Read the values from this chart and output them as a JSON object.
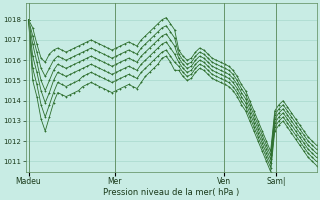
{
  "title": "",
  "xlabel": "Pression niveau de la mer( hPa )",
  "background_color": "#c8ece4",
  "grid_color": "#a8d8cc",
  "line_color": "#2d6e2d",
  "ylim": [
    1010.5,
    1018.8
  ],
  "yticks": [
    1011,
    1012,
    1013,
    1014,
    1015,
    1016,
    1017,
    1018
  ],
  "day_labels": [
    "Madeu",
    "Mer",
    "Ven",
    "Sam|"
  ],
  "day_positions": [
    0.0,
    0.3,
    0.68,
    0.86
  ],
  "series": [
    [
      1018.0,
      1017.6,
      1016.8,
      1016.1,
      1015.9,
      1016.3,
      1016.5,
      1016.6,
      1016.5,
      1016.4,
      1016.5,
      1016.6,
      1016.7,
      1016.8,
      1016.9,
      1017.0,
      1016.9,
      1016.8,
      1016.7,
      1016.6,
      1016.5,
      1016.6,
      1016.7,
      1016.8,
      1016.9,
      1016.8,
      1016.7,
      1017.0,
      1017.2,
      1017.4,
      1017.6,
      1017.8,
      1018.0,
      1018.1,
      1017.8,
      1017.5,
      1016.5,
      1016.2,
      1016.0,
      1016.1,
      1016.4,
      1016.6,
      1016.5,
      1016.3,
      1016.1,
      1016.0,
      1015.9,
      1015.8,
      1015.7,
      1015.5,
      1015.2,
      1014.8,
      1014.5,
      1014.0,
      1013.5,
      1013.0,
      1012.5,
      1012.0,
      1011.5,
      1013.5,
      1013.8,
      1014.0,
      1013.7,
      1013.4,
      1013.1,
      1012.8,
      1012.5,
      1012.2,
      1012.0,
      1011.8
    ],
    [
      1018.0,
      1017.2,
      1016.4,
      1015.6,
      1015.2,
      1015.6,
      1016.0,
      1016.2,
      1016.1,
      1016.0,
      1016.1,
      1016.2,
      1016.3,
      1016.4,
      1016.5,
      1016.6,
      1016.5,
      1016.4,
      1016.3,
      1016.2,
      1016.1,
      1016.2,
      1016.3,
      1016.4,
      1016.5,
      1016.4,
      1016.3,
      1016.6,
      1016.8,
      1017.0,
      1017.2,
      1017.4,
      1017.6,
      1017.7,
      1017.4,
      1017.1,
      1016.3,
      1016.0,
      1015.8,
      1015.9,
      1016.2,
      1016.4,
      1016.3,
      1016.1,
      1015.9,
      1015.8,
      1015.7,
      1015.6,
      1015.5,
      1015.3,
      1015.0,
      1014.6,
      1014.3,
      1013.8,
      1013.3,
      1012.8,
      1012.3,
      1011.8,
      1011.3,
      1013.3,
      1013.6,
      1013.8,
      1013.5,
      1013.2,
      1012.9,
      1012.6,
      1012.3,
      1012.0,
      1011.8,
      1011.6
    ],
    [
      1018.0,
      1016.8,
      1015.9,
      1015.0,
      1014.5,
      1015.0,
      1015.5,
      1015.8,
      1015.7,
      1015.6,
      1015.7,
      1015.8,
      1015.9,
      1016.0,
      1016.1,
      1016.2,
      1016.1,
      1016.0,
      1015.9,
      1015.8,
      1015.7,
      1015.8,
      1015.9,
      1016.0,
      1016.1,
      1016.0,
      1015.9,
      1016.2,
      1016.4,
      1016.6,
      1016.8,
      1017.0,
      1017.2,
      1017.3,
      1017.0,
      1016.7,
      1016.1,
      1015.8,
      1015.6,
      1015.7,
      1016.0,
      1016.2,
      1016.1,
      1015.9,
      1015.7,
      1015.6,
      1015.5,
      1015.4,
      1015.3,
      1015.1,
      1014.8,
      1014.4,
      1014.1,
      1013.6,
      1013.1,
      1012.6,
      1012.1,
      1011.6,
      1011.1,
      1013.1,
      1013.4,
      1013.6,
      1013.3,
      1013.0,
      1012.7,
      1012.4,
      1012.1,
      1011.8,
      1011.6,
      1011.4
    ],
    [
      1018.0,
      1016.2,
      1015.4,
      1014.5,
      1013.9,
      1014.4,
      1015.0,
      1015.4,
      1015.3,
      1015.2,
      1015.3,
      1015.4,
      1015.5,
      1015.6,
      1015.7,
      1015.8,
      1015.7,
      1015.6,
      1015.5,
      1015.4,
      1015.3,
      1015.4,
      1015.5,
      1015.6,
      1015.7,
      1015.6,
      1015.5,
      1015.8,
      1016.0,
      1016.2,
      1016.4,
      1016.6,
      1016.8,
      1016.9,
      1016.6,
      1016.3,
      1015.9,
      1015.6,
      1015.4,
      1015.5,
      1015.8,
      1016.0,
      1015.9,
      1015.7,
      1015.5,
      1015.4,
      1015.3,
      1015.2,
      1015.1,
      1014.9,
      1014.6,
      1014.2,
      1013.9,
      1013.4,
      1012.9,
      1012.4,
      1011.9,
      1011.4,
      1010.9,
      1012.9,
      1013.2,
      1013.4,
      1013.1,
      1012.8,
      1012.5,
      1012.2,
      1011.9,
      1011.6,
      1011.4,
      1011.2
    ],
    [
      1018.0,
      1015.6,
      1014.8,
      1013.8,
      1013.2,
      1013.8,
      1014.4,
      1014.9,
      1014.8,
      1014.7,
      1014.8,
      1014.9,
      1015.0,
      1015.2,
      1015.3,
      1015.4,
      1015.3,
      1015.2,
      1015.1,
      1015.0,
      1014.9,
      1015.0,
      1015.1,
      1015.2,
      1015.3,
      1015.2,
      1015.1,
      1015.4,
      1015.6,
      1015.8,
      1016.0,
      1016.2,
      1016.4,
      1016.5,
      1016.2,
      1015.9,
      1015.7,
      1015.4,
      1015.2,
      1015.3,
      1015.6,
      1015.8,
      1015.7,
      1015.5,
      1015.3,
      1015.2,
      1015.1,
      1015.0,
      1014.9,
      1014.7,
      1014.4,
      1014.0,
      1013.7,
      1013.2,
      1012.7,
      1012.2,
      1011.7,
      1011.2,
      1010.7,
      1012.7,
      1013.0,
      1013.2,
      1012.9,
      1012.6,
      1012.3,
      1012.0,
      1011.7,
      1011.4,
      1011.2,
      1011.0
    ],
    [
      1018.0,
      1015.0,
      1014.2,
      1013.1,
      1012.5,
      1013.2,
      1013.9,
      1014.4,
      1014.3,
      1014.2,
      1014.3,
      1014.4,
      1014.5,
      1014.7,
      1014.8,
      1014.9,
      1014.8,
      1014.7,
      1014.6,
      1014.5,
      1014.4,
      1014.5,
      1014.6,
      1014.7,
      1014.8,
      1014.7,
      1014.6,
      1014.9,
      1015.2,
      1015.4,
      1015.6,
      1015.8,
      1016.1,
      1016.2,
      1015.9,
      1015.5,
      1015.5,
      1015.2,
      1015.0,
      1015.1,
      1015.4,
      1015.6,
      1015.5,
      1015.3,
      1015.1,
      1015.0,
      1014.9,
      1014.8,
      1014.7,
      1014.5,
      1014.2,
      1013.8,
      1013.5,
      1013.0,
      1012.5,
      1012.0,
      1011.5,
      1011.0,
      1010.5,
      1012.5,
      1012.8,
      1013.0,
      1012.7,
      1012.4,
      1012.1,
      1011.8,
      1011.5,
      1011.2,
      1011.0,
      1010.8
    ]
  ]
}
